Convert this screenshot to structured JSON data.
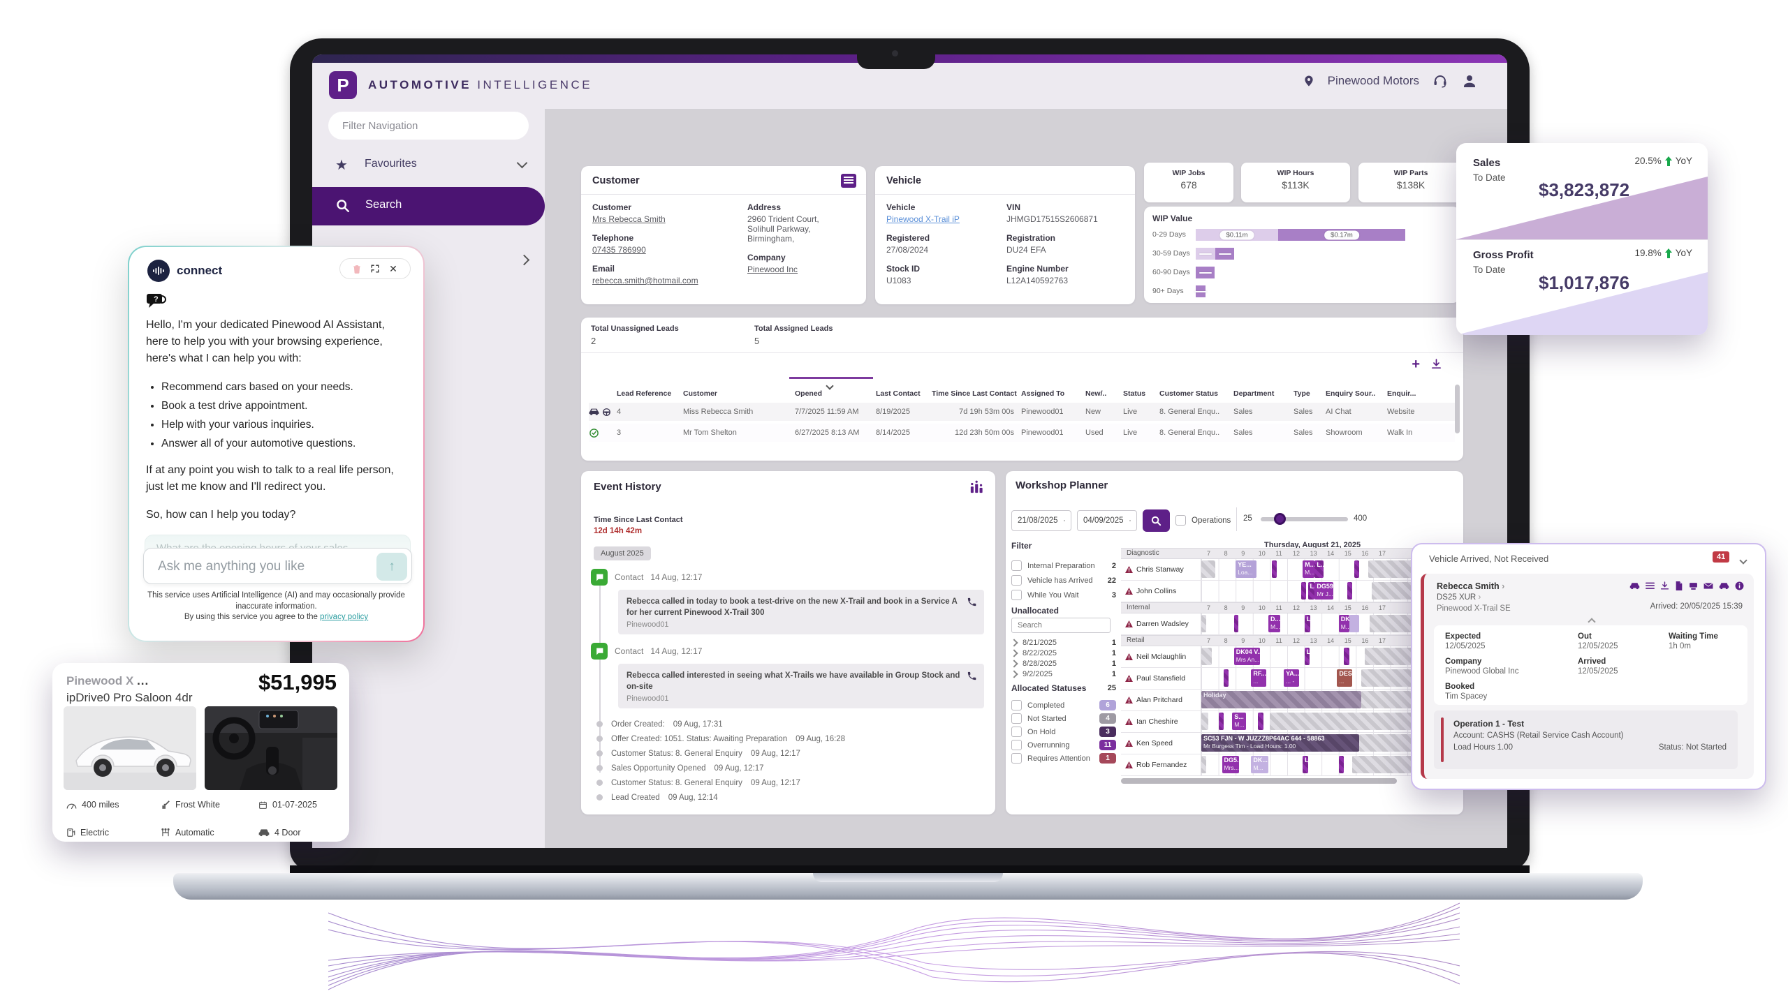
{
  "colors": {
    "accent": "#5e2088",
    "brand_strip": "#5b2086",
    "badge_red": "#c13a45",
    "green_up": "#17a84b",
    "wip_light": "#ddcdea",
    "wip_dark": "#a87fc6",
    "sales_wedge": "#c9aed6",
    "gp_wedge": "#ded6f4"
  },
  "brand": {
    "logo_letter": "P",
    "name_primary": "AUTOMOTIVE",
    "name_secondary": "INTELLIGENCE"
  },
  "header": {
    "dealer": "Pinewood Motors"
  },
  "sidebar": {
    "filter_placeholder": "Filter Navigation",
    "favourites": "Favourites",
    "search": "Search"
  },
  "customer_card": {
    "title": "Customer",
    "customer_label": "Customer",
    "customer": "Mrs Rebecca Smith",
    "telephone_label": "Telephone",
    "telephone": "07435 786990",
    "email_label": "Email",
    "email": "rebecca.smith@hotmail.com",
    "address_label": "Address",
    "address1": "2960 Trident Court,",
    "address2": "Solihull Parkway,",
    "address3": "Birmingham,",
    "company_label": "Company",
    "company": "Pinewood Inc"
  },
  "vehicle_card": {
    "title": "Vehicle",
    "vehicle_label": "Vehicle",
    "vehicle": "Pinewood X-Trail iP",
    "vin_label": "VIN",
    "vin": "JHMGD17515S2606871",
    "registered_label": "Registered",
    "registered": "27/08/2024",
    "registration_label": "Registration",
    "registration": "DU24 EFA",
    "stock_label": "Stock ID",
    "stock": "U1083",
    "engine_label": "Engine Number",
    "engine": "L12A140592763"
  },
  "wip": {
    "kpis": [
      {
        "label": "WIP Jobs",
        "value": "678"
      },
      {
        "label": "WIP Hours",
        "value": "$113K"
      },
      {
        "label": "WIP Parts",
        "value": "$138K"
      }
    ],
    "value_title": "WIP Value",
    "rows": [
      {
        "label": "0-29 Days",
        "light_m": 0.11,
        "dark_m": 0.17,
        "light_label": "$0.11m",
        "dark_label": "$0.17m"
      },
      {
        "label": "30-59 Days",
        "light_m": 0.026,
        "dark_m": 0.025
      },
      {
        "label": "60-90 Days",
        "light_m": 0,
        "dark_m": 0.025
      },
      {
        "label": "90+ Days",
        "light_m": 0,
        "dark_m": 0.013
      }
    ]
  },
  "sales_card": {
    "sales_label": "Sales",
    "to_date": "To Date",
    "sales_value": "$3,823,872",
    "sales_yoy": "20.5%",
    "yoy": "YoY",
    "gp_label": "Gross Profit",
    "gp_value": "$1,017,876",
    "gp_yoy": "19.8%"
  },
  "leads": {
    "unassigned_label": "Total Unassigned Leads",
    "unassigned": "2",
    "assigned_label": "Total Assigned Leads",
    "assigned": "5",
    "columns": [
      "Lead Reference",
      "Customer",
      "Opened",
      "Last Contact",
      "Time Since Last Contact",
      "Assigned To",
      "New/..",
      "Status",
      "Customer Status",
      "Department",
      "Type",
      "Enquiry Sour..",
      "Enquir..."
    ],
    "rows": [
      {
        "icon_class": "cs",
        "ref": "4",
        "customer": "Miss Rebecca Smith",
        "opened": "7/7/2025 11:59 AM",
        "last": "8/19/2025",
        "since": "7d 19h 53m 00s",
        "assigned": "Pinewood01",
        "nu": "New",
        "status": "Live",
        "cstatus": "8. General Enqu..",
        "dept": "Sales",
        "type": "Sales",
        "source": "AI Chat",
        "enq": "Website"
      },
      {
        "icon_class": "target",
        "ref": "3",
        "customer": "Mr Tom Shelton",
        "opened": "6/27/2025 8:13 AM",
        "last": "8/14/2025",
        "since": "12d 23h 50m 00s",
        "assigned": "Pinewood01",
        "nu": "Used",
        "status": "Live",
        "cstatus": "8. General Enqu..",
        "dept": "Sales",
        "type": "Sales",
        "source": "Showroom",
        "enq": "Walk In"
      }
    ]
  },
  "event_history": {
    "title": "Event History",
    "tslc_label": "Time Since Last Contact",
    "tslc": "12d 14h 42m",
    "month_chip": "August 2025",
    "contacts": [
      {
        "title": "Contact",
        "time": "14 Aug, 12:17",
        "text": "Rebecca called in today to book a test-drive on the new X-Trail and book in a Service A for her current Pinewood X-Trail 300",
        "by": "Pinewood01"
      },
      {
        "title": "Contact",
        "time": "14 Aug, 12:17",
        "text": "Rebecca called interested in seeing what X-Trails we have available in Group Stock and on-site",
        "by": "Pinewood01"
      }
    ],
    "events": [
      {
        "text": "Order Created:",
        "time": "09 Aug, 17:31"
      },
      {
        "text": "Offer Created: 1051. Status: Awaiting Preparation",
        "time": "09 Aug, 16:28"
      },
      {
        "text": "Customer Status: 8. General Enquiry",
        "time": "09 Aug, 12:17"
      },
      {
        "text": "Sales Opportunity Opened",
        "time": "09 Aug, 12:17"
      },
      {
        "text": "Customer Status: 8. General Enquiry",
        "time": "09 Aug, 12:17"
      },
      {
        "text": "Lead Created",
        "time": "09 Aug, 12:14"
      }
    ]
  },
  "workshop": {
    "title": "Workshop Planner",
    "date_from": "21/08/2025",
    "date_to": "04/09/2025",
    "operations_label": "Operations",
    "slider_min": "25",
    "slider_max": "400",
    "filter_title": "Filter",
    "filters": [
      {
        "label": "Internal Preparation",
        "count": "2"
      },
      {
        "label": "Vehicle has Arrived",
        "count": "22"
      },
      {
        "label": "While You Wait",
        "count": "3"
      }
    ],
    "unallocated_label": "Unallocated",
    "search_placeholder": "Search",
    "unallocated": [
      {
        "date": "8/21/2025",
        "count": "1"
      },
      {
        "date": "8/22/2025",
        "count": "1"
      },
      {
        "date": "8/28/2025",
        "count": "1"
      },
      {
        "date": "9/2/2025",
        "count": "1"
      }
    ],
    "allocated_label": "Allocated Statuses",
    "allocated_total": "25",
    "statuses": [
      {
        "label": "Completed",
        "count": "6",
        "color": "#b0a3d9"
      },
      {
        "label": "Not Started",
        "count": "4",
        "color": "#9e9aa3"
      },
      {
        "label": "On Hold",
        "count": "3",
        "color": "#4a2d5e"
      },
      {
        "label": "Overrunning",
        "count": "11",
        "color": "#7b2f9e"
      },
      {
        "label": "Requires Attention",
        "count": "1",
        "color": "#a5485a"
      }
    ],
    "day_header": "Thursday, August 21, 2025",
    "hours": [
      "7",
      "8",
      "9",
      "10",
      "11",
      "12",
      "13",
      "14",
      "15",
      "16",
      "17"
    ],
    "sections": [
      {
        "name": "Diagnostic",
        "rows": [
          {
            "tech": "Chris Stanway",
            "bars": [
              {
                "s": 7,
                "e": 7.8,
                "t": "edge"
              },
              {
                "s": 9,
                "e": 10.2,
                "t": "light",
                "l1": "YE...",
                "l2": "Loa..."
              },
              {
                "s": 11.1,
                "e": 11.4,
                "t": "hatch"
              },
              {
                "s": 12.9,
                "e": 13.6,
                "t": "solid",
                "l1": "M...",
                "l2": "M... -"
              },
              {
                "s": 13.6,
                "e": 14.1,
                "t": "hatch",
                "l1": "L..."
              },
              {
                "s": 15.9,
                "e": 16.2,
                "t": "hatch"
              },
              {
                "s": 16.7,
                "e": 21.6,
                "t": "edge"
              }
            ]
          },
          {
            "tech": "John Collins",
            "bars": [
              {
                "s": 12.8,
                "e": 13.1,
                "t": "hatch"
              },
              {
                "s": 13.2,
                "e": 13.6,
                "t": "hatch",
                "l1": "L..."
              },
              {
                "s": 13.6,
                "e": 14.7,
                "t": "solid",
                "l1": "DG59 ...",
                "l2": "Mr J... -"
              },
              {
                "s": 15.5,
                "e": 15.8,
                "t": "hatch"
              },
              {
                "s": 16.9,
                "e": 21.6,
                "t": "edge"
              }
            ]
          }
        ]
      },
      {
        "name": "Internal",
        "rows": [
          {
            "tech": "Darren Wadsley",
            "bars": [
              {
                "s": 7,
                "e": 7.3,
                "t": "edge"
              },
              {
                "s": 8.9,
                "e": 9.15,
                "t": "hatch"
              },
              {
                "s": 10.9,
                "e": 11.6,
                "t": "solid",
                "l1": "D...",
                "l2": "M... -"
              },
              {
                "s": 13,
                "e": 13.35,
                "t": "hatch",
                "l1": "L..."
              },
              {
                "s": 15,
                "e": 15.6,
                "t": "solid",
                "l1": "DK...",
                "l2": "M..."
              },
              {
                "s": 15.6,
                "e": 16.2,
                "t": "ghost"
              },
              {
                "s": 16.8,
                "e": 21.6,
                "t": "edge"
              }
            ]
          }
        ]
      },
      {
        "name": "Retail",
        "rows": [
          {
            "tech": "Neil Mclaughlin",
            "bars": [
              {
                "s": 7,
                "e": 7.6,
                "t": "edge"
              },
              {
                "s": 8.9,
                "e": 10.4,
                "t": "solid",
                "l1": "DK04 V...",
                "l2": "Mrs An... -"
              },
              {
                "s": 13,
                "e": 13.3,
                "t": "hatch",
                "l1": "L..."
              },
              {
                "s": 15.3,
                "e": 15.6,
                "t": "hatch"
              },
              {
                "s": 16.5,
                "e": 21.6,
                "t": "edge"
              }
            ]
          },
          {
            "tech": "Paul Stansfield",
            "bars": [
              {
                "s": 8.3,
                "e": 8.6,
                "t": "hatch"
              },
              {
                "s": 9.9,
                "e": 10.8,
                "t": "solid",
                "l1": "RF...",
                "l2": "..."
              },
              {
                "s": 11.8,
                "e": 12.7,
                "t": "solid",
                "l1": "YA...",
                "l2": "... -"
              },
              {
                "s": 14.9,
                "e": 15.8,
                "t": "attn",
                "l1": "DES...",
                "l2": "..."
              },
              {
                "s": 16.3,
                "e": 21.6,
                "t": "edge"
              }
            ]
          },
          {
            "tech": "Alan Pritchard",
            "bars": [
              {
                "s": 7,
                "e": 16.3,
                "t": "holiday",
                "l1": "Holiday"
              },
              {
                "s": 16.3,
                "e": 21.6,
                "t": "edge"
              }
            ]
          },
          {
            "tech": "Ian Cheshire",
            "bars": [
              {
                "s": 7,
                "e": 7.4,
                "t": "edge"
              },
              {
                "s": 8,
                "e": 8.3,
                "t": "hatch"
              },
              {
                "s": 8.8,
                "e": 9.6,
                "t": "solid",
                "l1": "S...",
                "l2": "M... -"
              },
              {
                "s": 10.3,
                "e": 10.6,
                "t": "hatch"
              },
              {
                "s": 11,
                "e": 21.6,
                "t": "edge"
              }
            ]
          },
          {
            "tech": "Ken Speed",
            "bars": [
              {
                "s": 7,
                "e": 16.2,
                "t": "dark",
                "l1": "SC53 FJN - W JUZZZ8P64AC 644 - 58863",
                "l2": "Mr Burgess Tim - Load Hours: 1.00"
              },
              {
                "s": 16.2,
                "e": 21.6,
                "t": "edge"
              }
            ]
          },
          {
            "tech": "Rob Fernandez",
            "bars": [
              {
                "s": 7,
                "e": 7.3,
                "t": "edge"
              },
              {
                "s": 8.2,
                "e": 9.2,
                "t": "solid",
                "l1": "DG5...",
                "l2": "Mrs... -"
              },
              {
                "s": 9.9,
                "e": 10.9,
                "t": "ghost",
                "l1": "DK...",
                "l2": "M..."
              },
              {
                "s": 12.9,
                "e": 13.2,
                "t": "hatch",
                "l1": "L..."
              },
              {
                "s": 15,
                "e": 15.3,
                "t": "hatch"
              },
              {
                "s": 15.8,
                "e": 21.6,
                "t": "edge"
              }
            ]
          }
        ]
      }
    ]
  },
  "arrived_panel": {
    "title": "Vehicle Arrived, Not Received",
    "badge": "41",
    "name": "Rebecca Smith",
    "reg": "DS25 XUR",
    "model": "Pinewood X-Trail SE",
    "arrived_at": "Arrived: 20/05/2025 15:39",
    "expected_label": "Expected",
    "expected": "12/05/2025",
    "out_label": "Out",
    "out": "12/05/2025",
    "waiting_label": "Waiting Time",
    "waiting": "1h 0m",
    "company_label": "Company",
    "company": "Pinewood Global Inc",
    "arrived_label": "Arrived",
    "arrived": "12/05/2025",
    "booked_label": "Booked",
    "booked": "Tim Spacey",
    "op_title": "Operation 1 - Test",
    "op_account": "Account: CASHS (Retail Service Cash Account)",
    "op_hours": "Load Hours 1.00",
    "op_status": "Status: Not Started"
  },
  "chat": {
    "brand": "connect",
    "greeting": "Hello, I'm your dedicated Pinewood AI Assistant, here to help you with your browsing experience, here's what I can help you with:",
    "bullets": [
      "Recommend cars based on your needs.",
      "Book a test drive appointment.",
      "Help with your various inquiries.",
      "Answer all of your automotive questions."
    ],
    "para2": "If at any point you wish to talk to a real life person, just let me know and I'll redirect you.",
    "para3": "So, how can I help you today?",
    "suggestion": "What are the opening hours of your sales",
    "input_placeholder": "Ask me anything you like",
    "disclaimer1": "This service uses Artificial Intelligence (AI) and may occasionally provide inaccurate information.",
    "disclaimer2": "By using this service you agree to the",
    "privacy_link": "privacy policy"
  },
  "listing_card": {
    "title": "Pinewood X",
    "ellipsis": "...",
    "subtitle": "ipDrive0 Pro Saloon 4dr",
    "price": "$51,995",
    "specs": [
      {
        "icon": "speedometer",
        "text": "400 miles"
      },
      {
        "icon": "paint",
        "text": "Frost White"
      },
      {
        "icon": "calendar",
        "text": "01-07-2025"
      },
      {
        "icon": "fuel",
        "text": "Electric"
      },
      {
        "icon": "gearbox",
        "text": "Automatic"
      },
      {
        "icon": "door",
        "text": "4 Door"
      }
    ]
  }
}
